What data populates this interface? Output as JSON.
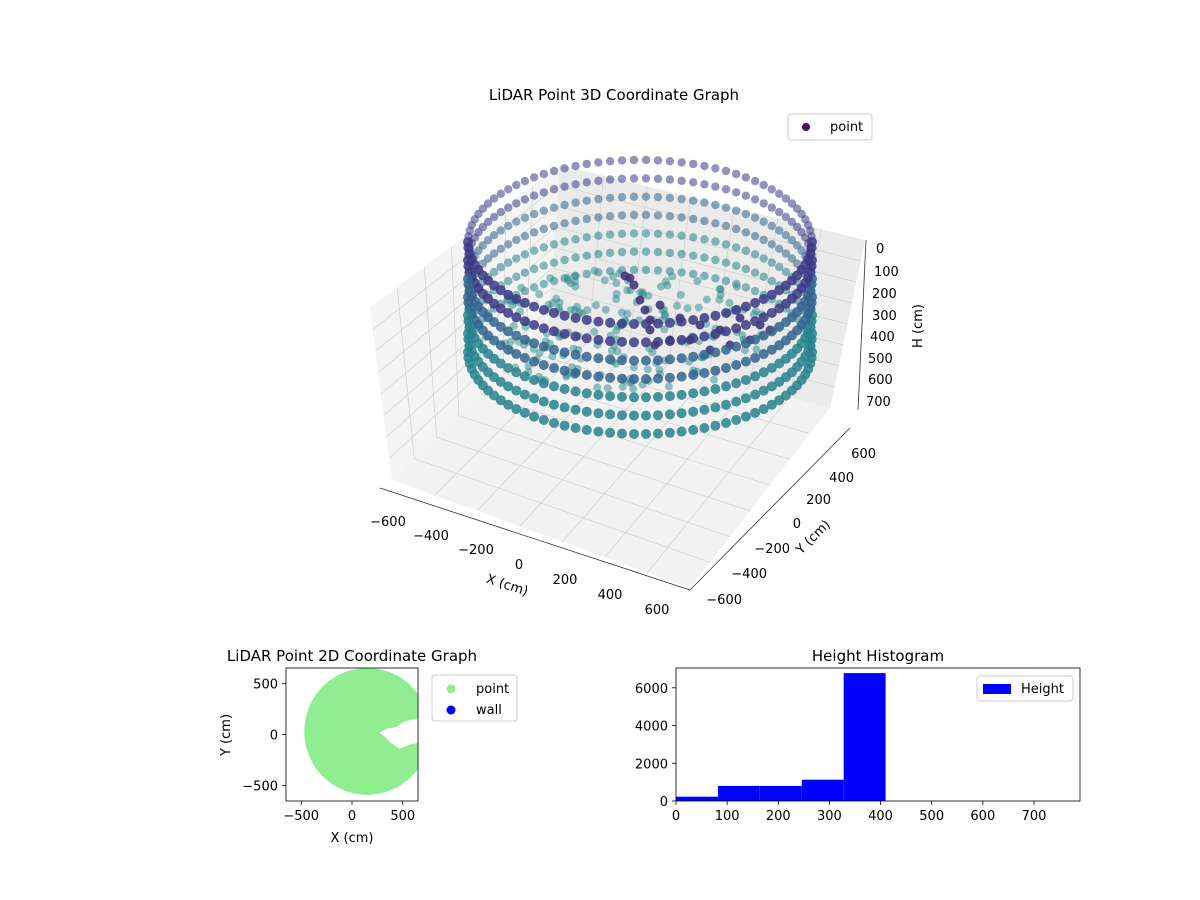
{
  "chart_data": [
    {
      "type": "scatter",
      "title": "LiDAR Point 3D Coordinate Graph",
      "xlabel": "X (cm)",
      "ylabel": "Y (cm)",
      "zlabel": "H (cm)",
      "x_ticks": [
        "−600",
        "−400",
        "−200",
        "0",
        "200",
        "400",
        "600"
      ],
      "y_ticks": [
        "600",
        "400",
        "200",
        "0",
        "−200",
        "−400",
        "−600"
      ],
      "z_ticks": [
        "0",
        "100",
        "200",
        "300",
        "400",
        "500",
        "600",
        "700"
      ],
      "legend": [
        "point"
      ],
      "legend_position": "top-right",
      "grid": true,
      "colormap": "viridis",
      "point_color": "#440f62",
      "description_shape": "ring of wall points radius ~500 cm, height 0–400 cm, with an object cluster near x≈250, y≈50"
    },
    {
      "type": "scatter",
      "title": "LiDAR Point 2D Coordinate Graph",
      "xlabel": "X (cm)",
      "ylabel": "Y (cm)",
      "xlim": [
        -650,
        650
      ],
      "ylim": [
        -650,
        650
      ],
      "x_ticks": [
        "−500",
        "0",
        "500"
      ],
      "y_ticks": [
        "500",
        "0",
        "−500"
      ],
      "series": [
        {
          "name": "point",
          "color": "#90ee90"
        },
        {
          "name": "wall",
          "color": "#0000ff"
        }
      ],
      "legend_position": "outside-right"
    },
    {
      "type": "bar",
      "title": "Height Histogram",
      "xlim": [
        0,
        790
      ],
      "ylim": [
        0,
        7050
      ],
      "x_ticks": [
        "0",
        "100",
        "200",
        "300",
        "400",
        "500",
        "600",
        "700"
      ],
      "y_ticks": [
        "0",
        "2000",
        "4000",
        "6000"
      ],
      "bins": [
        {
          "x0": 0,
          "x1": 82,
          "value": 230
        },
        {
          "x0": 82,
          "x1": 164,
          "value": 800
        },
        {
          "x0": 164,
          "x1": 246,
          "value": 800
        },
        {
          "x0": 246,
          "x1": 328,
          "value": 1130
        },
        {
          "x0": 328,
          "x1": 410,
          "value": 6780
        },
        {
          "x0": 410,
          "x1": 492,
          "value": 0
        },
        {
          "x0": 492,
          "x1": 574,
          "value": 0
        },
        {
          "x0": 574,
          "x1": 656,
          "value": 0
        },
        {
          "x0": 656,
          "x1": 738,
          "value": 0
        },
        {
          "x0": 738,
          "x1": 790,
          "value": 0
        }
      ],
      "series": [
        {
          "name": "Height",
          "color": "#0000ff"
        }
      ],
      "legend_position": "top-right"
    }
  ]
}
